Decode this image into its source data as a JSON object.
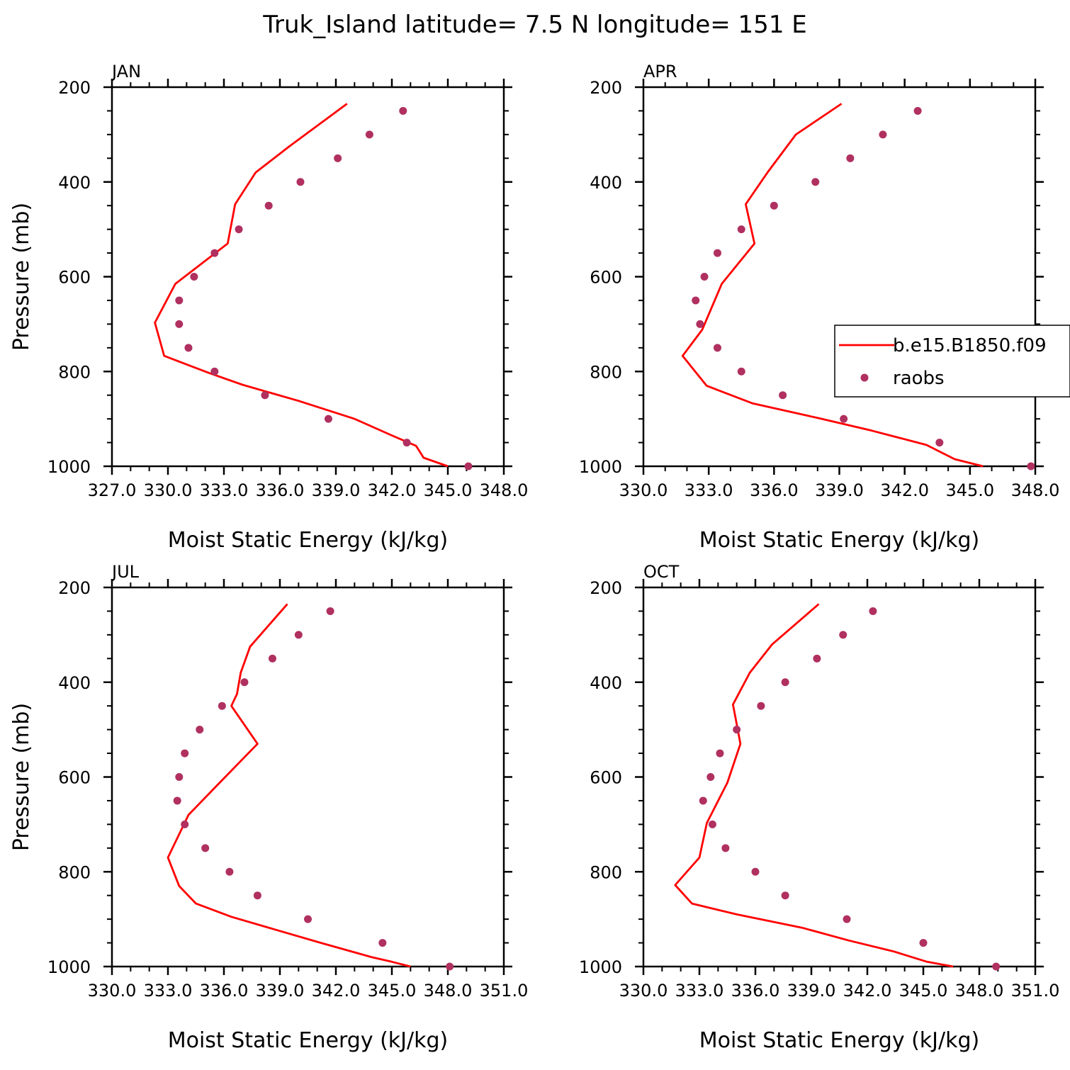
{
  "title": "Truk_Island   latitude= 7.5 N longitude= 151 E",
  "colors": {
    "model": "#ff0000",
    "obs": "#b03060",
    "axis": "#000000"
  },
  "legend": {
    "model_label": "b.e15.B1850.f09",
    "obs_label": "raobs"
  },
  "chart_data": [
    {
      "type": "line",
      "panel": "JAN",
      "xlabel": "Moist Static Energy (kJ/kg)",
      "ylabel": "Pressure (mb)",
      "xlim": [
        327.0,
        348.0
      ],
      "ylim": [
        200,
        1000
      ],
      "y_inverted": true,
      "xticks": [
        "327.0",
        "330.0",
        "333.0",
        "336.0",
        "339.0",
        "342.0",
        "345.0",
        "348.0"
      ],
      "yticks": [
        "200",
        "400",
        "600",
        "800",
        "1000"
      ],
      "legend_visible": false,
      "series": [
        {
          "name": "b.e15.B1850.f09",
          "style": "line",
          "x": [
            339.6,
            336.5,
            334.7,
            333.6,
            333.2,
            330.4,
            329.3,
            329.8,
            332.2,
            334.0,
            337.0,
            340.0,
            342.0,
            343.3,
            343.7,
            345.0
          ],
          "y": [
            235,
            325,
            380,
            447,
            530,
            615,
            697,
            767,
            803,
            828,
            862,
            900,
            935,
            957,
            982,
            1000
          ]
        },
        {
          "name": "raobs",
          "style": "markers",
          "x": [
            342.6,
            340.8,
            339.1,
            337.1,
            335.4,
            333.8,
            332.5,
            331.4,
            330.6,
            330.6,
            331.1,
            332.5,
            335.2,
            338.6,
            342.8,
            346.1
          ],
          "y": [
            250,
            300,
            350,
            400,
            450,
            500,
            550,
            600,
            650,
            700,
            750,
            800,
            850,
            900,
            950,
            1000
          ]
        }
      ]
    },
    {
      "type": "line",
      "panel": "APR",
      "xlabel": "Moist Static Energy (kJ/kg)",
      "ylabel": "",
      "xlim": [
        330.0,
        348.0
      ],
      "ylim": [
        200,
        1000
      ],
      "y_inverted": true,
      "xticks": [
        "330.0",
        "333.0",
        "336.0",
        "339.0",
        "342.0",
        "345.0",
        "348.0"
      ],
      "yticks": [
        "200",
        "400",
        "600",
        "800",
        "1000"
      ],
      "legend_visible": true,
      "legend_position": "right",
      "series": [
        {
          "name": "b.e15.B1850.f09",
          "style": "line",
          "x": [
            339.1,
            337.0,
            335.7,
            334.7,
            335.1,
            333.6,
            332.7,
            331.8,
            332.9,
            335.0,
            338.0,
            340.5,
            343.0,
            344.3,
            345.6
          ],
          "y": [
            235,
            300,
            380,
            447,
            530,
            615,
            712,
            767,
            830,
            867,
            898,
            925,
            955,
            985,
            1000
          ]
        },
        {
          "name": "raobs",
          "style": "markers",
          "x": [
            342.6,
            341.0,
            339.5,
            337.9,
            336.0,
            334.5,
            333.4,
            332.8,
            332.4,
            332.6,
            333.4,
            334.5,
            336.4,
            339.2,
            343.6,
            347.8
          ],
          "y": [
            250,
            300,
            350,
            400,
            450,
            500,
            550,
            600,
            650,
            700,
            750,
            800,
            850,
            900,
            950,
            1000
          ]
        }
      ]
    },
    {
      "type": "line",
      "panel": "JUL",
      "xlabel": "Moist Static Energy (kJ/kg)",
      "ylabel": "Pressure (mb)",
      "xlim": [
        330.0,
        351.0
      ],
      "ylim": [
        200,
        1000
      ],
      "y_inverted": true,
      "xticks": [
        "330.0",
        "333.0",
        "336.0",
        "339.0",
        "342.0",
        "345.0",
        "348.0",
        "351.0"
      ],
      "yticks": [
        "200",
        "400",
        "600",
        "800",
        "1000"
      ],
      "legend_visible": false,
      "series": [
        {
          "name": "b.e15.B1850.f09",
          "style": "line",
          "x": [
            339.4,
            337.4,
            336.9,
            336.7,
            336.4,
            337.8,
            335.7,
            334.1,
            333.0,
            333.6,
            334.5,
            336.4,
            339.0,
            341.2,
            343.9,
            345.0,
            346.0
          ],
          "y": [
            235,
            325,
            380,
            425,
            450,
            530,
            615,
            680,
            770,
            830,
            867,
            895,
            925,
            950,
            980,
            990,
            1000
          ]
        },
        {
          "name": "raobs",
          "style": "markers",
          "x": [
            341.7,
            340.0,
            338.6,
            337.1,
            335.9,
            334.7,
            333.9,
            333.6,
            333.5,
            333.9,
            335.0,
            336.3,
            337.8,
            340.5,
            344.5,
            348.1
          ],
          "y": [
            250,
            300,
            350,
            400,
            450,
            500,
            550,
            600,
            650,
            700,
            750,
            800,
            850,
            900,
            950,
            1000
          ]
        }
      ]
    },
    {
      "type": "line",
      "panel": "OCT",
      "xlabel": "Moist Static Energy (kJ/kg)",
      "ylabel": "",
      "xlim": [
        330.0,
        351.0
      ],
      "ylim": [
        200,
        1000
      ],
      "y_inverted": true,
      "xticks": [
        "330.0",
        "333.0",
        "336.0",
        "339.0",
        "342.0",
        "345.0",
        "348.0",
        "351.0"
      ],
      "yticks": [
        "200",
        "400",
        "600",
        "800",
        "1000"
      ],
      "legend_visible": false,
      "series": [
        {
          "name": "b.e15.B1850.f09",
          "style": "line",
          "x": [
            339.4,
            336.9,
            335.7,
            334.8,
            335.2,
            334.5,
            333.4,
            333.0,
            331.7,
            332.6,
            335.0,
            338.5,
            341.0,
            343.4,
            345.2,
            346.6
          ],
          "y": [
            235,
            320,
            380,
            447,
            530,
            612,
            697,
            770,
            828,
            867,
            890,
            918,
            945,
            968,
            990,
            1000
          ]
        },
        {
          "name": "raobs",
          "style": "markers",
          "x": [
            342.3,
            340.7,
            339.3,
            337.6,
            336.3,
            335.0,
            334.1,
            333.6,
            333.2,
            333.7,
            334.4,
            336.0,
            337.6,
            340.9,
            345.0,
            348.9
          ],
          "y": [
            250,
            300,
            350,
            400,
            450,
            500,
            550,
            600,
            650,
            700,
            750,
            800,
            850,
            900,
            950,
            1000
          ]
        }
      ]
    }
  ]
}
